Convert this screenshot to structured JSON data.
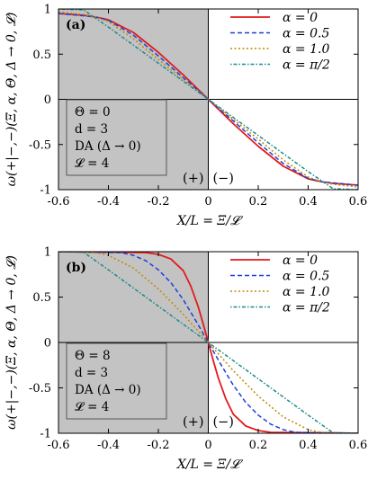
{
  "chart_data": [
    {
      "type": "line",
      "panel_label": "(a)",
      "xlabel": "X/L = Ξ/𝓛",
      "ylabel": "ω(+|−,−)(Ξ, α, Θ, Δ → 0, 𝓛)",
      "xlim": [
        -0.6,
        0.6
      ],
      "ylim": [
        -1,
        1
      ],
      "xticks": [
        -0.6,
        -0.4,
        -0.2,
        0,
        0.2,
        0.4,
        0.6
      ],
      "yticks": [
        -1,
        -0.5,
        0,
        0.5,
        1
      ],
      "xtick_labels": [
        "-0.6",
        "-0.4",
        "-0.2",
        "0",
        "0.2",
        "0.4",
        "0.6"
      ],
      "ytick_labels": [
        "-1",
        "-0.5",
        "0",
        "0.5",
        "1"
      ],
      "shaded_region_x": [
        -0.6,
        0
      ],
      "region_labels": [
        "(+)",
        "(−)"
      ],
      "info_box": [
        "Θ = 0",
        "d = 3",
        "DA (Δ → 0)",
        "𝓛 = 4"
      ],
      "legend_position": "top-right",
      "series": [
        {
          "name": "α = 0",
          "color": "#e31a1c",
          "style": "solid",
          "x": [
            -0.6,
            -0.5,
            -0.45,
            -0.4,
            -0.3,
            -0.2,
            -0.1,
            0,
            0.1,
            0.2,
            0.3,
            0.4,
            0.45,
            0.5,
            0.6
          ],
          "y": [
            0.95,
            0.93,
            0.91,
            0.88,
            0.74,
            0.52,
            0.27,
            0,
            -0.27,
            -0.52,
            -0.74,
            -0.88,
            -0.91,
            -0.93,
            -0.95
          ]
        },
        {
          "name": "α = 0.5",
          "color": "#1f3fd8",
          "style": "dashed",
          "x": [
            -0.6,
            -0.5,
            -0.45,
            -0.4,
            -0.3,
            -0.2,
            -0.1,
            0,
            0.1,
            0.2,
            0.3,
            0.4,
            0.45,
            0.5,
            0.6
          ],
          "y": [
            0.95,
            0.925,
            0.91,
            0.875,
            0.71,
            0.48,
            0.24,
            0,
            -0.24,
            -0.48,
            -0.71,
            -0.875,
            -0.91,
            -0.925,
            -0.95
          ]
        },
        {
          "name": "α = 1.0",
          "color": "#c08a00",
          "style": "dotted",
          "x": [
            -0.6,
            -0.5,
            -0.45,
            -0.4,
            -0.3,
            -0.2,
            -0.1,
            0,
            0.1,
            0.2,
            0.3,
            0.4,
            0.45,
            0.5,
            0.6
          ],
          "y": [
            0.97,
            0.94,
            0.91,
            0.86,
            0.67,
            0.44,
            0.22,
            0,
            -0.22,
            -0.44,
            -0.67,
            -0.86,
            -0.91,
            -0.94,
            -0.97
          ]
        },
        {
          "name": "α = π/2",
          "color": "#1f8a8a",
          "style": "dashdot",
          "x": [
            -0.6,
            -0.5,
            -0.4,
            -0.3,
            -0.2,
            -0.1,
            0,
            0.1,
            0.2,
            0.3,
            0.4,
            0.5,
            0.6
          ],
          "y": [
            1.0,
            0.99,
            0.8,
            0.6,
            0.4,
            0.2,
            0,
            -0.2,
            -0.4,
            -0.6,
            -0.8,
            -0.99,
            -1.0
          ]
        }
      ]
    },
    {
      "type": "line",
      "panel_label": "(b)",
      "xlabel": "X/L = Ξ/𝓛",
      "ylabel": "ω(+|−,−)(Ξ, α, Θ, Δ → 0, 𝓛)",
      "xlim": [
        -0.6,
        0.6
      ],
      "ylim": [
        -1,
        1
      ],
      "xticks": [
        -0.6,
        -0.4,
        -0.2,
        0,
        0.2,
        0.4,
        0.6
      ],
      "yticks": [
        -1,
        -0.5,
        0,
        0.5,
        1
      ],
      "xtick_labels": [
        "-0.6",
        "-0.4",
        "-0.2",
        "0",
        "0.2",
        "0.4",
        "0.6"
      ],
      "ytick_labels": [
        "-1",
        "-0.5",
        "0",
        "0.5",
        "1"
      ],
      "shaded_region_x": [
        -0.6,
        0
      ],
      "region_labels": [
        "(+)",
        "(−)"
      ],
      "info_box": [
        "Θ = 8",
        "d = 3",
        "DA (Δ → 0)",
        "𝓛 = 4"
      ],
      "legend_position": "top-right",
      "series": [
        {
          "name": "α = 0",
          "color": "#e31a1c",
          "style": "solid",
          "x": [
            -0.6,
            -0.25,
            -0.2,
            -0.15,
            -0.1,
            -0.07,
            -0.04,
            -0.02,
            0,
            0.02,
            0.04,
            0.07,
            0.1,
            0.15,
            0.2,
            0.25,
            0.6
          ],
          "y": [
            1.0,
            0.99,
            0.97,
            0.92,
            0.79,
            0.62,
            0.39,
            0.2,
            0,
            -0.2,
            -0.39,
            -0.62,
            -0.79,
            -0.92,
            -0.97,
            -0.99,
            -1.0
          ]
        },
        {
          "name": "α = 0.5",
          "color": "#1f3fd8",
          "style": "dashed",
          "x": [
            -0.6,
            -0.35,
            -0.3,
            -0.25,
            -0.2,
            -0.15,
            -0.1,
            -0.05,
            0,
            0.05,
            0.1,
            0.15,
            0.2,
            0.25,
            0.3,
            0.35,
            0.6
          ],
          "y": [
            1.0,
            0.99,
            0.96,
            0.9,
            0.8,
            0.66,
            0.47,
            0.24,
            0,
            -0.24,
            -0.47,
            -0.66,
            -0.8,
            -0.9,
            -0.96,
            -0.99,
            -1.0
          ]
        },
        {
          "name": "α = 1.0",
          "color": "#c08a00",
          "style": "dotted",
          "x": [
            -0.6,
            -0.45,
            -0.4,
            -0.3,
            -0.2,
            -0.1,
            0,
            0.1,
            0.2,
            0.3,
            0.4,
            0.45,
            0.6
          ],
          "y": [
            1.0,
            0.99,
            0.96,
            0.82,
            0.59,
            0.31,
            0,
            -0.31,
            -0.59,
            -0.82,
            -0.96,
            -0.99,
            -1.0
          ]
        },
        {
          "name": "α = π/2",
          "color": "#1f8a8a",
          "style": "dashdot",
          "x": [
            -0.6,
            -0.5,
            -0.4,
            -0.3,
            -0.2,
            -0.1,
            0,
            0.1,
            0.2,
            0.3,
            0.4,
            0.5,
            0.6
          ],
          "y": [
            1.0,
            0.995,
            0.8,
            0.6,
            0.4,
            0.2,
            0,
            -0.2,
            -0.4,
            -0.6,
            -0.8,
            -0.995,
            -1.0
          ]
        }
      ]
    }
  ]
}
